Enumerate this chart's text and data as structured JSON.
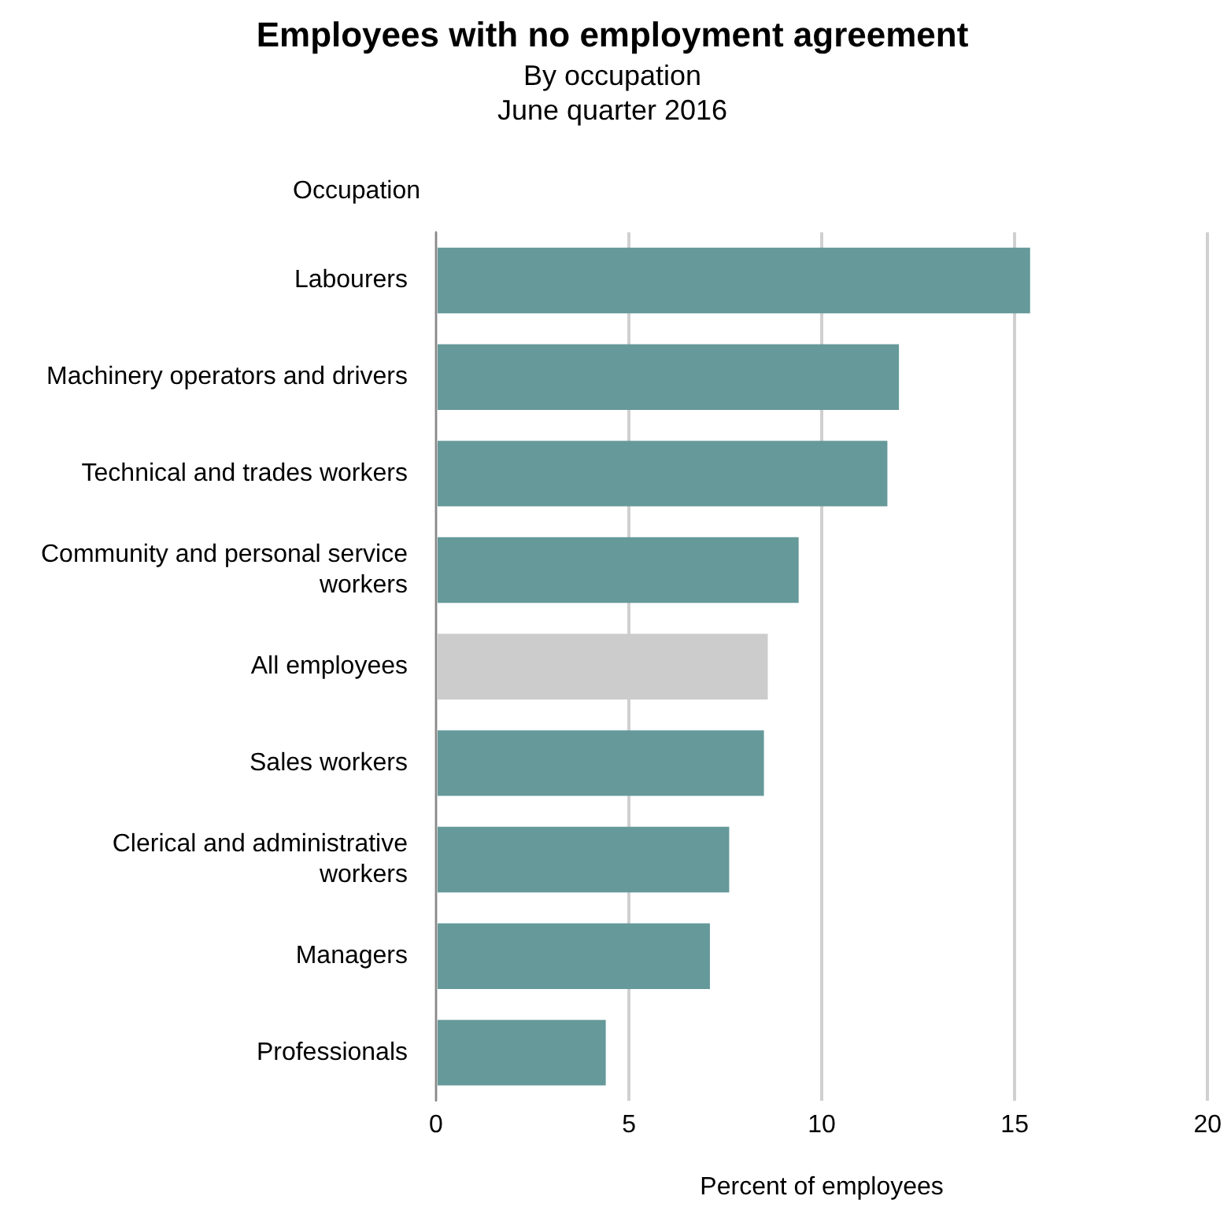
{
  "chart_data": {
    "type": "bar",
    "orientation": "horizontal",
    "title": "Employees with no employment agreement",
    "subtitle": "By occupation\nJune quarter 2016",
    "ylabel": "Occupation",
    "xlabel": "Percent of employees",
    "categories": [
      "Labourers",
      "Machinery operators and drivers",
      "Technical and trades workers",
      "Community and personal service workers",
      "All employees",
      "Sales workers",
      "Clerical and administrative workers",
      "Managers",
      "Professionals"
    ],
    "values": [
      15.4,
      12.0,
      11.7,
      9.4,
      8.6,
      8.5,
      7.6,
      7.1,
      4.4
    ],
    "colors": [
      "#669999",
      "#669999",
      "#669999",
      "#669999",
      "#cccccc",
      "#669999",
      "#669999",
      "#669999",
      "#669999"
    ],
    "xlim": [
      0,
      20
    ],
    "xticks": [
      0,
      5,
      10,
      15,
      20
    ],
    "grid": "x",
    "legend": false
  }
}
